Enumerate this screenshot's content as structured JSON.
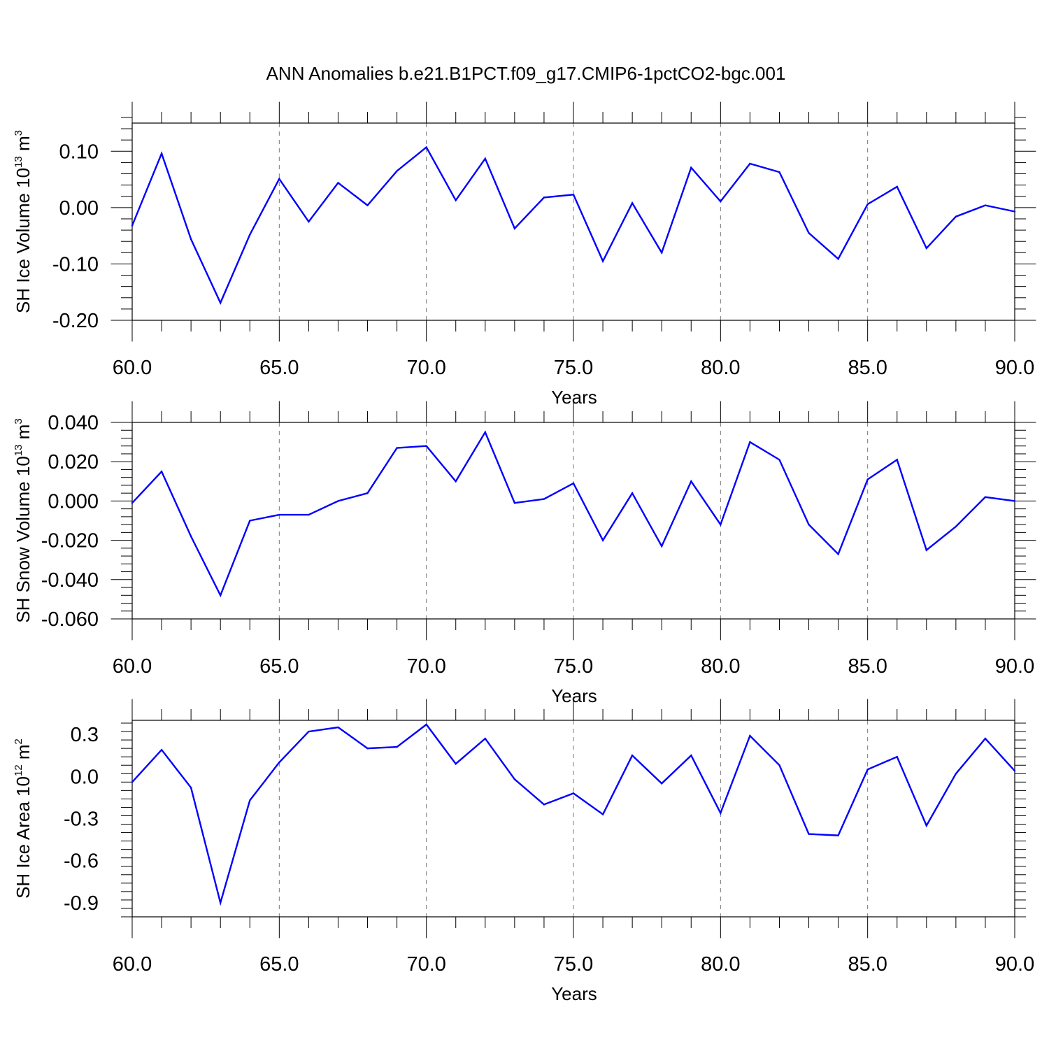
{
  "figure": {
    "title": "ANN Anomalies b.e21.B1PCT.f09_g17.CMIP6-1pctCO2-bgc.001",
    "line_color": "#0000ff"
  },
  "chart_data": [
    {
      "type": "line",
      "ylabel": {
        "text": "SH Ice Volume 10",
        "sup": "13",
        "unit": " m",
        "unit_sup": "3"
      },
      "xlabel": "Years",
      "xlim": [
        60,
        90
      ],
      "ylim": [
        -0.2,
        0.15
      ],
      "xticks": [
        60,
        65,
        70,
        75,
        80,
        85,
        90
      ],
      "xtick_labels": [
        "60.0",
        "65.0",
        "70.0",
        "75.0",
        "80.0",
        "85.0",
        "90.0"
      ],
      "yticks": [
        -0.2,
        -0.1,
        0.0,
        0.1
      ],
      "ytick_labels": [
        "-0.20",
        "-0.10",
        "0.00",
        "0.10"
      ],
      "grid": "vertical dashed at major x ticks",
      "x": [
        60,
        61,
        62,
        63,
        64,
        65,
        66,
        67,
        68,
        69,
        70,
        71,
        72,
        73,
        74,
        75,
        76,
        77,
        78,
        79,
        80,
        81,
        82,
        83,
        84,
        85,
        86,
        87,
        88,
        89,
        90
      ],
      "series": [
        {
          "values": [
            -0.032,
            0.096,
            -0.056,
            -0.169,
            -0.048,
            0.051,
            -0.025,
            0.044,
            0.004,
            0.065,
            0.107,
            0.013,
            0.087,
            -0.037,
            0.018,
            0.023,
            -0.095,
            0.008,
            -0.08,
            0.071,
            0.011,
            0.078,
            0.063,
            -0.045,
            -0.091,
            0.006,
            0.037,
            -0.072,
            -0.016,
            0.004,
            -0.007
          ]
        }
      ]
    },
    {
      "type": "line",
      "ylabel": {
        "text": "SH Snow Volume 10",
        "sup": "13",
        "unit": " m",
        "unit_sup": "3"
      },
      "xlabel": "Years",
      "xlim": [
        60,
        90
      ],
      "ylim": [
        -0.06,
        0.04
      ],
      "xticks": [
        60,
        65,
        70,
        75,
        80,
        85,
        90
      ],
      "xtick_labels": [
        "60.0",
        "65.0",
        "70.0",
        "75.0",
        "80.0",
        "85.0",
        "90.0"
      ],
      "yticks": [
        -0.06,
        -0.04,
        -0.02,
        0.0,
        0.02,
        0.04
      ],
      "ytick_labels": [
        "-0.060",
        "-0.040",
        "-0.020",
        "0.000",
        "0.020",
        "0.040"
      ],
      "grid": "vertical dashed at major x ticks",
      "x": [
        60,
        61,
        62,
        63,
        64,
        65,
        66,
        67,
        68,
        69,
        70,
        71,
        72,
        73,
        74,
        75,
        76,
        77,
        78,
        79,
        80,
        81,
        82,
        83,
        84,
        85,
        86,
        87,
        88,
        89,
        90
      ],
      "series": [
        {
          "values": [
            -0.001,
            0.015,
            -0.018,
            -0.048,
            -0.01,
            -0.007,
            -0.007,
            0.0,
            0.004,
            0.027,
            0.028,
            0.01,
            0.035,
            -0.001,
            0.001,
            0.009,
            -0.02,
            0.004,
            -0.023,
            0.01,
            -0.012,
            0.03,
            0.021,
            -0.012,
            -0.027,
            0.011,
            0.021,
            -0.025,
            -0.013,
            0.002,
            0.0
          ]
        }
      ]
    },
    {
      "type": "line",
      "ylabel": {
        "text": "SH Ice Area 10",
        "sup": "12",
        "unit": " m",
        "unit_sup": "2"
      },
      "xlabel": "Years",
      "xlim": [
        60,
        90
      ],
      "ylim": [
        -1.0,
        0.4
      ],
      "xticks": [
        60,
        65,
        70,
        75,
        80,
        85,
        90
      ],
      "xtick_labels": [
        "60.0",
        "65.0",
        "70.0",
        "75.0",
        "80.0",
        "85.0",
        "90.0"
      ],
      "yticks": [
        -0.9,
        -0.6,
        -0.3,
        0.0,
        0.3
      ],
      "ytick_labels": [
        "-0.9",
        "-0.6",
        "-0.3",
        "0.0",
        "0.3"
      ],
      "grid": "vertical dashed at major x ticks",
      "x": [
        60,
        61,
        62,
        63,
        64,
        65,
        66,
        67,
        68,
        69,
        70,
        71,
        72,
        73,
        74,
        75,
        76,
        77,
        78,
        79,
        80,
        81,
        82,
        83,
        84,
        85,
        86,
        87,
        88,
        89,
        90
      ],
      "series": [
        {
          "values": [
            -0.04,
            0.19,
            -0.08,
            -0.9,
            -0.17,
            0.1,
            0.32,
            0.35,
            0.2,
            0.21,
            0.37,
            0.09,
            0.27,
            -0.02,
            -0.2,
            -0.12,
            -0.27,
            0.15,
            -0.05,
            0.15,
            -0.26,
            0.29,
            0.08,
            -0.41,
            -0.42,
            0.05,
            0.14,
            -0.35,
            0.02,
            0.27,
            0.04
          ]
        }
      ]
    }
  ]
}
